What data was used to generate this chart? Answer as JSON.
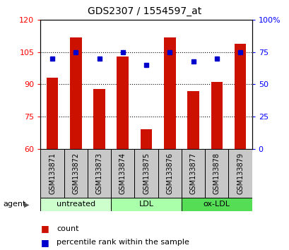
{
  "title": "GDS2307 / 1554597_at",
  "samples": [
    "GSM133871",
    "GSM133872",
    "GSM133873",
    "GSM133874",
    "GSM133875",
    "GSM133876",
    "GSM133877",
    "GSM133878",
    "GSM133879"
  ],
  "counts": [
    93,
    112,
    88,
    103,
    69,
    112,
    87,
    91,
    109
  ],
  "percentiles": [
    70,
    75,
    70,
    75,
    65,
    75,
    68,
    70,
    75
  ],
  "groups_info": [
    {
      "label": "untreated",
      "start": 0,
      "end": 3,
      "color": "#ccffcc"
    },
    {
      "label": "LDL",
      "start": 3,
      "end": 6,
      "color": "#aaffaa"
    },
    {
      "label": "ox-LDL",
      "start": 6,
      "end": 9,
      "color": "#55dd55"
    }
  ],
  "bar_color": "#cc1100",
  "dot_color": "#0000cc",
  "ylim_left": [
    60,
    120
  ],
  "ylim_right": [
    0,
    100
  ],
  "yticks_left": [
    60,
    75,
    90,
    105,
    120
  ],
  "yticks_right": [
    0,
    25,
    50,
    75,
    100
  ],
  "ytick_labels_right": [
    "0",
    "25",
    "50",
    "75",
    "100%"
  ],
  "grid_values": [
    75,
    90,
    105
  ],
  "sample_bg_color": "#c8c8c8",
  "plot_bg_color": "#ffffff",
  "bar_width": 0.5,
  "agent_label": "agent",
  "legend_count_label": "count",
  "legend_pct_label": "percentile rank within the sample",
  "title_fontsize": 10,
  "tick_fontsize": 8,
  "label_fontsize": 7,
  "group_fontsize": 8,
  "legend_fontsize": 8
}
